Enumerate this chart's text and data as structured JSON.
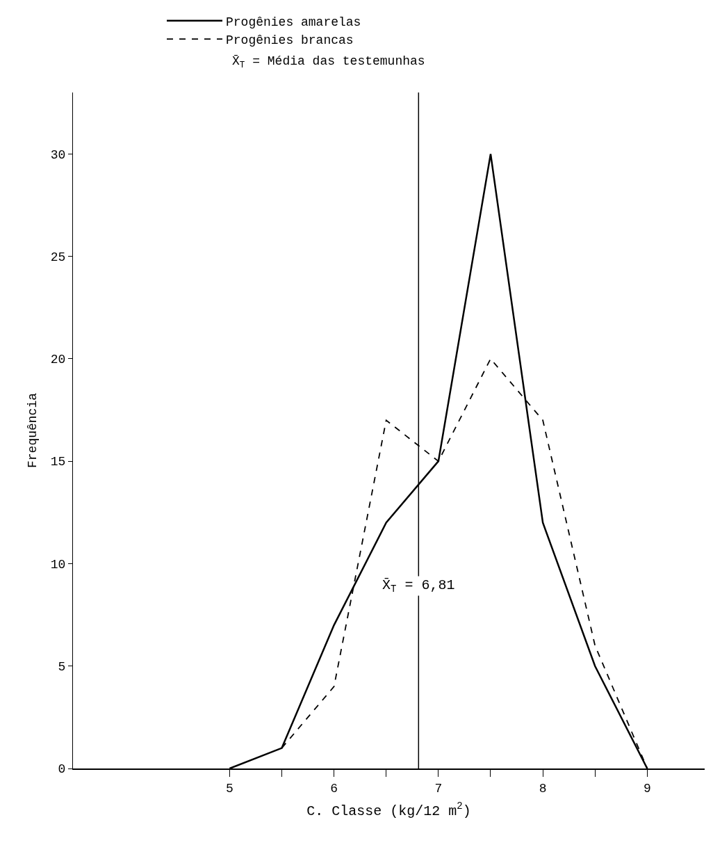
{
  "chart_data": {
    "type": "line",
    "xlabel": "C. Classe (kg/12 m$^{2}$)",
    "ylabel": "Frequência",
    "x": [
      5,
      5.5,
      6,
      6.5,
      7,
      7.5,
      8,
      8.5,
      9
    ],
    "series": [
      {
        "name": "Progênies amarelas",
        "color": "#000000",
        "line_style": "solid",
        "values": [
          0,
          1,
          7,
          12,
          15,
          30,
          12,
          5,
          0
        ]
      },
      {
        "name": "Progênies brancas",
        "color": "#000000",
        "line_style": "dashed",
        "values": [
          null,
          1,
          4,
          17,
          15,
          20,
          17,
          6,
          0
        ]
      }
    ],
    "xlim": [
      3.5,
      9.55
    ],
    "ylim": [
      0,
      33
    ],
    "xticks": [
      5,
      {
        "value": 5.5,
        "label": null
      },
      6,
      {
        "value": 6.5,
        "label": null
      },
      7,
      {
        "value": 7.5,
        "label": null
      },
      8,
      {
        "value": 8.5,
        "label": null
      },
      9
    ],
    "yticks": [
      0,
      5,
      10,
      15,
      20,
      25,
      30
    ],
    "ref_lines": [
      {
        "axis": "x",
        "value": 6.81,
        "label": "X̄$_{T}$ = 6,81",
        "color": "#000000"
      }
    ],
    "annotations": [
      "X̄$_{T}$ = Média das testemunhas"
    ],
    "legend": "top",
    "marker": "none"
  }
}
